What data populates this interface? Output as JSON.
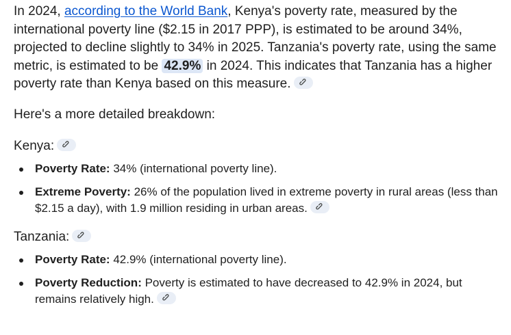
{
  "intro_paragraph": {
    "part1": "In 2024, ",
    "link_text": "according to the World Bank",
    "part2": ", Kenya's poverty rate, measured by the international poverty line ($2.15 in 2017 PPP), is estimated to be around 34%, projected to decline slightly to 34% in 2025. Tanzania's poverty rate, using the same metric, is estimated to be ",
    "highlight": "42.9%",
    "part3": " in 2024. This indicates that Tanzania has a higher poverty rate than Kenya based on this measure."
  },
  "breakdown_intro": "Here's a more detailed breakdown:",
  "sections": [
    {
      "heading": "Kenya:",
      "items": [
        {
          "label": "Poverty Rate:",
          "text": " 34% (international poverty line)."
        },
        {
          "label": "Extreme Poverty:",
          "text": " 26% of the population lived in extreme poverty in rural areas (less than $2.15 a day), with 1.9 million residing in urban areas."
        }
      ]
    },
    {
      "heading": "Tanzania:",
      "items": [
        {
          "label": "Poverty Rate:",
          "text": " 42.9% (international poverty line)."
        },
        {
          "label": "Poverty Reduction:",
          "text": " Poverty is estimated to have decreased to 42.9% in 2024, but remains relatively high."
        }
      ]
    }
  ],
  "icons": {
    "citation": "link-icon"
  },
  "colors": {
    "link": "#0b57d0",
    "highlight_bg": "#dde7f6",
    "chip_bg": "#e9eef6",
    "text": "#1f1f1f"
  }
}
